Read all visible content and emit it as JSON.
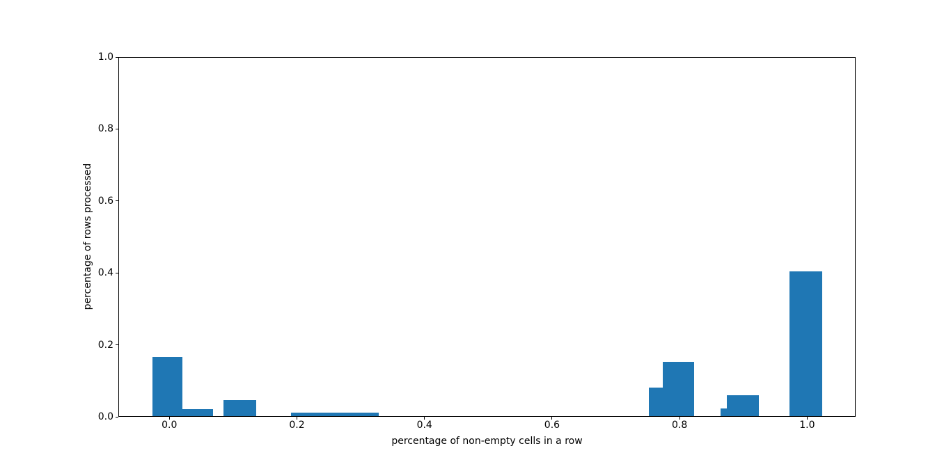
{
  "figure": {
    "background_color": "#ffffff",
    "bar_color": "#1f77b4",
    "axis_color": "#000000",
    "text_color": "#000000"
  },
  "chart_data": {
    "type": "bar",
    "subtype": "histogram",
    "title": "",
    "xlabel": "percentage of non-empty cells in a row",
    "ylabel": "percentage of rows processed",
    "xlim": [
      -0.08,
      1.076
    ],
    "ylim": [
      0.0,
      1.0
    ],
    "grid": false,
    "legend": "none",
    "x_ticks": {
      "values": [
        0.0,
        0.2,
        0.4,
        0.6,
        0.8,
        1.0
      ],
      "labels": [
        "0.0",
        "0.2",
        "0.4",
        "0.6",
        "0.8",
        "1.0"
      ]
    },
    "y_ticks": {
      "values": [
        0.0,
        0.2,
        0.4,
        0.6,
        0.8,
        1.0
      ],
      "labels": [
        "0.0",
        "0.2",
        "0.4",
        "0.6",
        "0.8",
        "1.0"
      ]
    },
    "bars": [
      {
        "x_start": -0.026,
        "x_end": 0.02,
        "height": 0.166
      },
      {
        "x_start": 0.02,
        "x_end": 0.068,
        "height": 0.021
      },
      {
        "x_start": 0.085,
        "x_end": 0.136,
        "height": 0.047
      },
      {
        "x_start": 0.191,
        "x_end": 0.328,
        "height": 0.011
      },
      {
        "x_start": 0.752,
        "x_end": 0.774,
        "height": 0.082
      },
      {
        "x_start": 0.774,
        "x_end": 0.823,
        "height": 0.153
      },
      {
        "x_start": 0.864,
        "x_end": 0.874,
        "height": 0.023
      },
      {
        "x_start": 0.874,
        "x_end": 0.924,
        "height": 0.059
      },
      {
        "x_start": 0.972,
        "x_end": 1.024,
        "height": 0.404
      }
    ]
  }
}
